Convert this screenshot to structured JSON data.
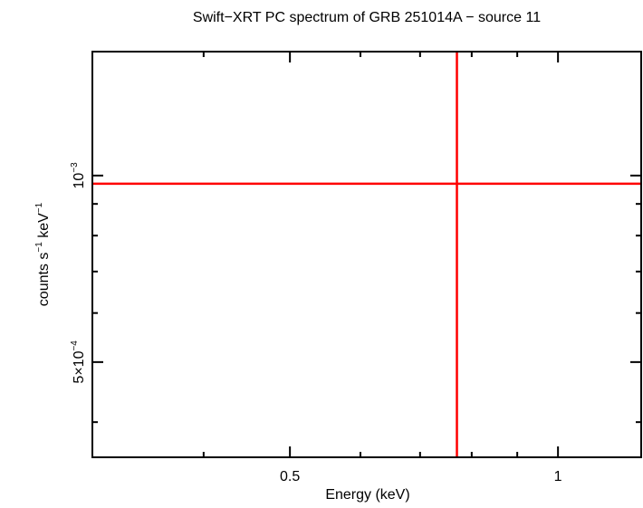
{
  "chart_data": {
    "type": "scatter",
    "title": "Swift−XRT PC spectrum of GRB 251014A − source 11",
    "xlabel": "Energy (keV)",
    "ylabel_main": "counts s",
    "ylabel_sup1": "−1",
    "ylabel_mid": " keV",
    "ylabel_sup2": "−1",
    "x_scale": "log",
    "y_scale": "log",
    "xlim": [
      0.3,
      1.24
    ],
    "ylim": [
      0.000351,
      0.001585
    ],
    "x_ticks": [
      {
        "value": 0.5,
        "label": "0.5"
      },
      {
        "value": 1,
        "label": "1"
      }
    ],
    "y_ticks": [
      {
        "value": 0.001,
        "base": "10",
        "exp": "−3"
      },
      {
        "value": 0.0005,
        "base": "5×10",
        "exp": "−4"
      }
    ],
    "x_minor": [
      0.4,
      0.6,
      0.7,
      0.8,
      0.9
    ],
    "y_minor": [
      0.0004,
      0.0006,
      0.0007,
      0.0008,
      0.0009
    ],
    "grid": false,
    "series": [
      {
        "color": "#ff0000",
        "points": [
          {
            "x": 0.77,
            "y": 0.00097,
            "xerr": [
              0.3,
              1.24
            ],
            "yerr": [
              0.000351,
              0.001585
            ]
          }
        ]
      }
    ]
  }
}
